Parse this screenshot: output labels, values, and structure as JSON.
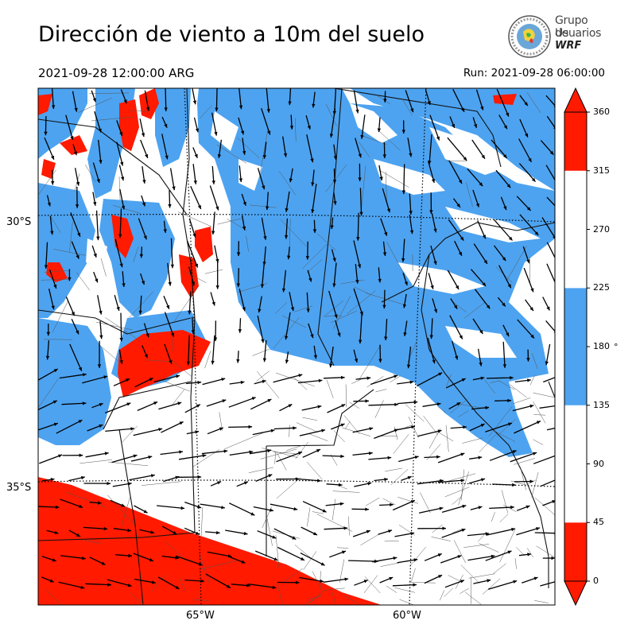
{
  "header": {
    "title": "Dirección de viento a 10m del suelo",
    "valid_time": "2021-09-28 12:00:00 ARG",
    "run_time": "Run: 2021-09-28 06:00:00"
  },
  "logo": {
    "line1": "Grupo de",
    "line2": "Usuarios",
    "line3": "WRF"
  },
  "map": {
    "lat_labels": [
      "30°S",
      "35°S"
    ],
    "lon_labels": [
      "65°W",
      "60°W"
    ],
    "extent": {
      "lon_min": -66.8,
      "lon_max": -57.0,
      "lat_min": -37.3,
      "lat_max": -27.5
    }
  },
  "colorbar": {
    "ticks": [
      "0",
      "45",
      "90",
      "135",
      "180",
      "225",
      "270",
      "315",
      "360"
    ],
    "unit": "°",
    "colors": {
      "red": "#ff1a00",
      "white": "#ffffff",
      "blue": "#4da3f0"
    },
    "bands": [
      {
        "from": 0,
        "to": 45,
        "color": "red"
      },
      {
        "from": 45,
        "to": 135,
        "color": "white"
      },
      {
        "from": 135,
        "to": 225,
        "color": "blue"
      },
      {
        "from": 225,
        "to": 315,
        "color": "white"
      },
      {
        "from": 315,
        "to": 360,
        "color": "red"
      }
    ]
  }
}
